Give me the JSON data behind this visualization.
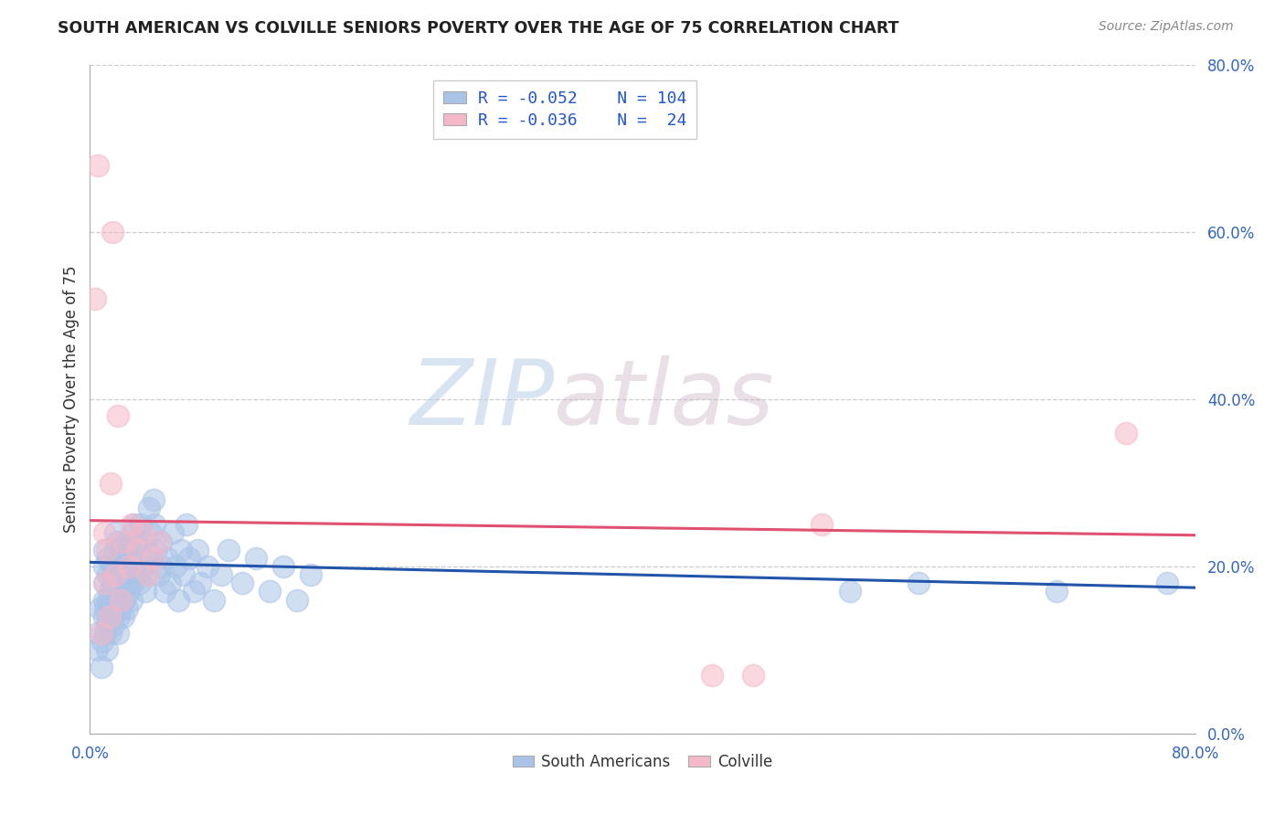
{
  "title": "SOUTH AMERICAN VS COLVILLE SENIORS POVERTY OVER THE AGE OF 75 CORRELATION CHART",
  "source": "Source: ZipAtlas.com",
  "ylabel": "Seniors Poverty Over the Age of 75",
  "xlim": [
    0.0,
    0.8
  ],
  "ylim": [
    0.0,
    0.8
  ],
  "x_ticks": [
    0.0,
    0.1,
    0.2,
    0.3,
    0.4,
    0.5,
    0.6,
    0.7,
    0.8
  ],
  "y_ticks_right": [
    0.0,
    0.2,
    0.4,
    0.6,
    0.8
  ],
  "y_tick_labels_right": [
    "0.0%",
    "20.0%",
    "40.0%",
    "60.0%",
    "80.0%"
  ],
  "legend_R_blue": "-0.052",
  "legend_N_blue": "104",
  "legend_R_pink": "-0.036",
  "legend_N_pink": " 24",
  "blue_color": "#aac4e8",
  "pink_color": "#f5b8c8",
  "line_blue_color": "#2255aa",
  "line_pink_color": "#e05070",
  "watermark_zip": "ZIP",
  "watermark_atlas": "atlas",
  "south_americans_x": [
    0.005,
    0.006,
    0.007,
    0.008,
    0.009,
    0.01,
    0.01,
    0.01,
    0.01,
    0.01,
    0.011,
    0.011,
    0.012,
    0.012,
    0.013,
    0.013,
    0.013,
    0.014,
    0.014,
    0.015,
    0.015,
    0.016,
    0.016,
    0.017,
    0.017,
    0.018,
    0.018,
    0.018,
    0.019,
    0.019,
    0.02,
    0.02,
    0.02,
    0.02,
    0.021,
    0.021,
    0.022,
    0.022,
    0.023,
    0.023,
    0.024,
    0.024,
    0.025,
    0.025,
    0.026,
    0.026,
    0.027,
    0.027,
    0.028,
    0.028,
    0.029,
    0.03,
    0.03,
    0.031,
    0.031,
    0.032,
    0.032,
    0.033,
    0.034,
    0.034,
    0.035,
    0.036,
    0.037,
    0.038,
    0.039,
    0.04,
    0.041,
    0.042,
    0.043,
    0.044,
    0.045,
    0.046,
    0.047,
    0.048,
    0.05,
    0.051,
    0.052,
    0.054,
    0.056,
    0.058,
    0.06,
    0.062,
    0.064,
    0.066,
    0.068,
    0.07,
    0.072,
    0.075,
    0.078,
    0.08,
    0.085,
    0.09,
    0.095,
    0.1,
    0.11,
    0.12,
    0.13,
    0.14,
    0.15,
    0.16,
    0.55,
    0.6,
    0.7,
    0.78
  ],
  "south_americans_y": [
    0.1,
    0.12,
    0.15,
    0.08,
    0.11,
    0.14,
    0.16,
    0.18,
    0.2,
    0.22,
    0.12,
    0.15,
    0.1,
    0.13,
    0.16,
    0.19,
    0.21,
    0.14,
    0.17,
    0.12,
    0.15,
    0.18,
    0.2,
    0.13,
    0.16,
    0.19,
    0.22,
    0.24,
    0.15,
    0.17,
    0.12,
    0.16,
    0.2,
    0.23,
    0.14,
    0.18,
    0.15,
    0.22,
    0.17,
    0.2,
    0.14,
    0.19,
    0.16,
    0.21,
    0.18,
    0.23,
    0.15,
    0.2,
    0.17,
    0.22,
    0.19,
    0.16,
    0.21,
    0.18,
    0.24,
    0.2,
    0.25,
    0.22,
    0.19,
    0.23,
    0.21,
    0.18,
    0.25,
    0.2,
    0.23,
    0.17,
    0.22,
    0.19,
    0.27,
    0.24,
    0.21,
    0.28,
    0.25,
    0.22,
    0.19,
    0.23,
    0.2,
    0.17,
    0.21,
    0.18,
    0.24,
    0.2,
    0.16,
    0.22,
    0.19,
    0.25,
    0.21,
    0.17,
    0.22,
    0.18,
    0.2,
    0.16,
    0.19,
    0.22,
    0.18,
    0.21,
    0.17,
    0.2,
    0.16,
    0.19,
    0.17,
    0.18,
    0.17,
    0.18
  ],
  "colville_x": [
    0.004,
    0.006,
    0.008,
    0.01,
    0.011,
    0.012,
    0.014,
    0.015,
    0.016,
    0.018,
    0.02,
    0.022,
    0.025,
    0.028,
    0.03,
    0.034,
    0.038,
    0.042,
    0.046,
    0.05,
    0.45,
    0.48,
    0.53,
    0.75
  ],
  "colville_y": [
    0.52,
    0.68,
    0.12,
    0.24,
    0.18,
    0.22,
    0.14,
    0.3,
    0.6,
    0.19,
    0.38,
    0.16,
    0.23,
    0.2,
    0.25,
    0.22,
    0.24,
    0.19,
    0.21,
    0.23,
    0.07,
    0.07,
    0.25,
    0.36
  ]
}
